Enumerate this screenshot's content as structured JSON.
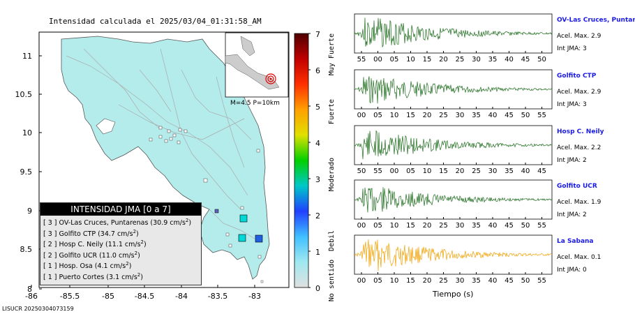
{
  "map": {
    "title": "Intensidad calculada el 2025/03/04_01:31:58_AM",
    "x_ticks": [
      "-86",
      "-85.5",
      "-85",
      "-84.5",
      "-84",
      "-83.5",
      "-83"
    ],
    "y_ticks": [
      "11",
      "10.5",
      "10",
      "9.5",
      "9",
      "8.5",
      "8"
    ],
    "magnitude": "M=4.5  P=10km",
    "footer": "LISUCR 20250304073159",
    "legend": {
      "title": "INTENSIDAD JMA [0 a 7]",
      "rows": [
        {
          "prefix": "[ 3 ]",
          "text": "OV-Las Cruces, Puntarenas (30.9 cm/s",
          "sup": "2",
          ")": ")"
        },
        {
          "prefix": "[ 3 ]",
          "text": "Golfito CTP (34.7 cm/s",
          "sup": "2"
        },
        {
          "prefix": "[ 2 ]",
          "text": "Hosp C. Neily (11.1 cm/s",
          "sup": "2"
        },
        {
          "prefix": "[ 2 ]",
          "text": "Golfito UCR (11.0 cm/s",
          "sup": "2"
        },
        {
          "prefix": "[ 1 ]",
          "text": "Hosp. Osa (4.1 cm/s",
          "sup": "2"
        },
        {
          "prefix": "[ 1 ]",
          "text": "Puerto Cortes (3.1 cm/s",
          "sup": "2"
        }
      ]
    }
  },
  "colorbar": {
    "ticks": [
      "7",
      "6",
      "5",
      "4",
      "3",
      "2",
      "1",
      "0"
    ],
    "labels": [
      "Muy Fuerte",
      "Fuerte",
      "Moderado",
      "Debil",
      "No sentido"
    ],
    "colors": [
      "#e0e0e0",
      "#a0e8f0",
      "#40c0ff",
      "#2040ff",
      "#00c8c8",
      "#00d000",
      "#e0e000",
      "#ffa000",
      "#ff3000",
      "#c00000",
      "#500000"
    ]
  },
  "waveforms": [
    {
      "name": "OV-Las Cruces, Puntar",
      "acel": "Acel. Max. 2.9",
      "jma": "Int JMA: 3",
      "color": "#1a6b1a",
      "ticks": [
        "55",
        "00",
        "05",
        "10",
        "15",
        "20",
        "25",
        "30",
        "35",
        "40",
        "45",
        "50"
      ],
      "amp": 0.9,
      "seed": 3
    },
    {
      "name": "Golfito CTP",
      "acel": "Acel. Max. 2.9",
      "jma": "Int JMA: 3",
      "color": "#1a6b1a",
      "ticks": [
        "00",
        "05",
        "10",
        "15",
        "20",
        "25",
        "30",
        "35",
        "40",
        "45",
        "50",
        "55"
      ],
      "amp": 0.8,
      "seed": 7
    },
    {
      "name": "Hosp C. Neily",
      "acel": "Acel. Max. 2.2",
      "jma": "Int JMA: 2",
      "color": "#1a6b1a",
      "ticks": [
        "50",
        "55",
        "00",
        "05",
        "10",
        "15",
        "20",
        "25",
        "30",
        "35",
        "40",
        "45"
      ],
      "amp": 0.85,
      "seed": 11
    },
    {
      "name": "Golfito UCR",
      "acel": "Acel. Max. 1.9",
      "jma": "Int JMA: 2",
      "color": "#1a6b1a",
      "ticks": [
        "00",
        "05",
        "10",
        "15",
        "20",
        "25",
        "30",
        "35",
        "40",
        "45",
        "50",
        "55"
      ],
      "amp": 0.75,
      "seed": 13
    },
    {
      "name": "La Sabana",
      "acel": "Acel. Max. 0.1",
      "jma": "Int JMA: 0",
      "color": "#f0a000",
      "ticks": [
        "00",
        "05",
        "10",
        "15",
        "20",
        "25",
        "30",
        "35",
        "40",
        "45",
        "50",
        "55"
      ],
      "amp": 0.9,
      "seed": 17
    }
  ],
  "time_label": "Tiempo (s)"
}
